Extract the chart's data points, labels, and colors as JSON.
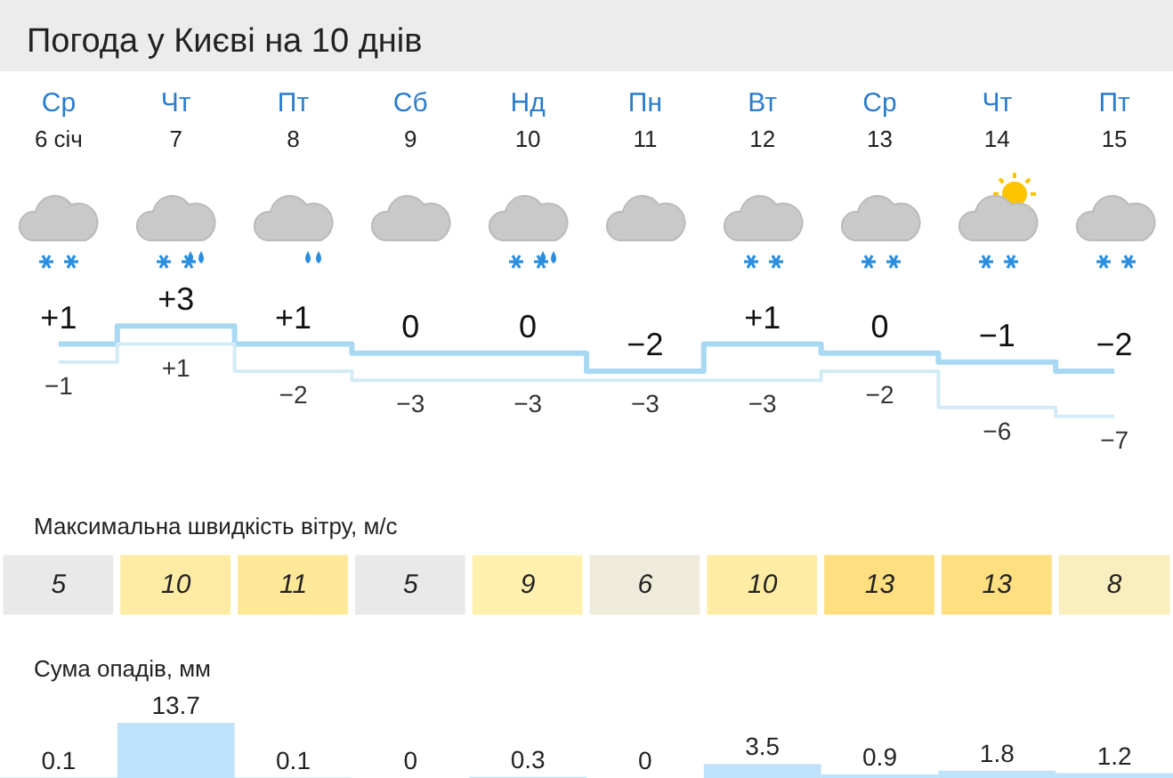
{
  "chart_data": [
    {
      "type": "step",
      "title": "Погода у Києві на 10 днів",
      "categories": [
        "Ср\n6 січ",
        "Чт\n7",
        "Пт\n8",
        "Сб\n9",
        "Нд\n10",
        "Пн\n11",
        "Вт\n12",
        "Ср\n13",
        "Чт\n14",
        "Пт\n15"
      ],
      "tick_labels": "x",
      "marker": "none",
      "series": [
        {
          "color": "#a9d9f2",
          "values": [
            1,
            3,
            1,
            0,
            0,
            -2,
            1,
            0,
            -1,
            -2
          ],
          "value_labels": [
            "+1",
            "+3",
            "+1",
            "0",
            "0",
            "−2",
            "+1",
            "0",
            "−1",
            "−2"
          ]
        },
        {
          "color": "#d3ebf7",
          "values": [
            -1,
            1,
            -2,
            -3,
            -3,
            -3,
            -3,
            -2,
            -6,
            -7
          ],
          "value_labels": [
            "−1",
            "+1",
            "−2",
            "−3",
            "−3",
            "−3",
            "−3",
            "−2",
            "−6",
            "−7"
          ]
        }
      ]
    },
    {
      "type": "heatmap",
      "title": "Максимальна швидкість вітру, м/с",
      "categories": [
        null,
        null,
        null,
        null,
        null,
        null,
        null,
        null,
        null,
        null
      ],
      "y_categories": [
        null
      ],
      "tick_labels": false,
      "cells": [
        [
          5,
          10,
          11,
          5,
          9,
          6,
          10,
          13,
          13,
          8
        ]
      ],
      "cell_labels": [
        [
          "5",
          "10",
          "11",
          "5",
          "9",
          "6",
          "10",
          "13",
          "13",
          "8"
        ]
      ]
    },
    {
      "type": "bar",
      "title": "Сума опадів, мм",
      "categories": [
        null,
        null,
        null,
        null,
        null,
        null,
        null,
        null,
        null,
        null
      ],
      "tick_labels": false,
      "color": "#bfe2fb",
      "data_labels": true,
      "values": [
        0.1,
        13.7,
        0.1,
        0,
        0.3,
        0,
        3.5,
        0.9,
        1.8,
        1.2
      ]
    }
  ]
}
